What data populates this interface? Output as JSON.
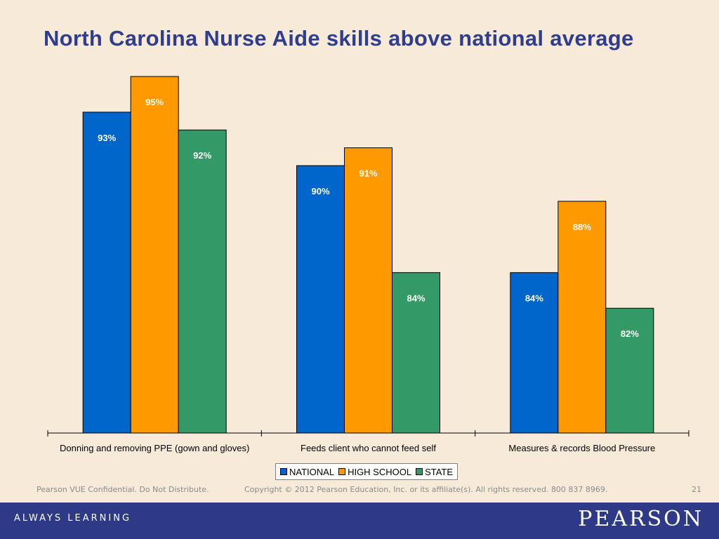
{
  "slide": {
    "title": "North Carolina Nurse Aide skills above national average",
    "footer_left": "Pearson VUE Confidential. Do Not Distribute.",
    "footer_copyright": "Copyright © 2012 Pearson Education, Inc. or its affiliate(s). All rights reserved. 800 837 8969.",
    "page_number": "21",
    "tagline": "ALWAYS LEARNING",
    "brand": "PEARSON",
    "bar_color": "#2e3a87"
  },
  "chart_data": {
    "type": "bar",
    "title": "North Carolina Nurse Aide skills above national average",
    "categories": [
      "Donning and removing PPE (gown and gloves)",
      "Feeds client who cannot feed self",
      "Measures & records Blood Pressure"
    ],
    "series": [
      {
        "name": "NATIONAL",
        "values": [
          93,
          90,
          84
        ],
        "labels": [
          "93%",
          "90%",
          "84%"
        ],
        "color": "#0066cc"
      },
      {
        "name": "HIGH SCHOOL",
        "values": [
          95,
          91,
          88
        ],
        "labels": [
          "95%",
          "91%",
          "88%"
        ],
        "color": "#ff9900"
      },
      {
        "name": "STATE",
        "values": [
          92,
          84,
          82
        ],
        "labels": [
          "92%",
          "84%",
          "82%"
        ],
        "color": "#339966"
      }
    ],
    "ylim": [
      75,
      95
    ],
    "xlabel": "",
    "ylabel": "",
    "grid": false,
    "legend": "bottom"
  }
}
